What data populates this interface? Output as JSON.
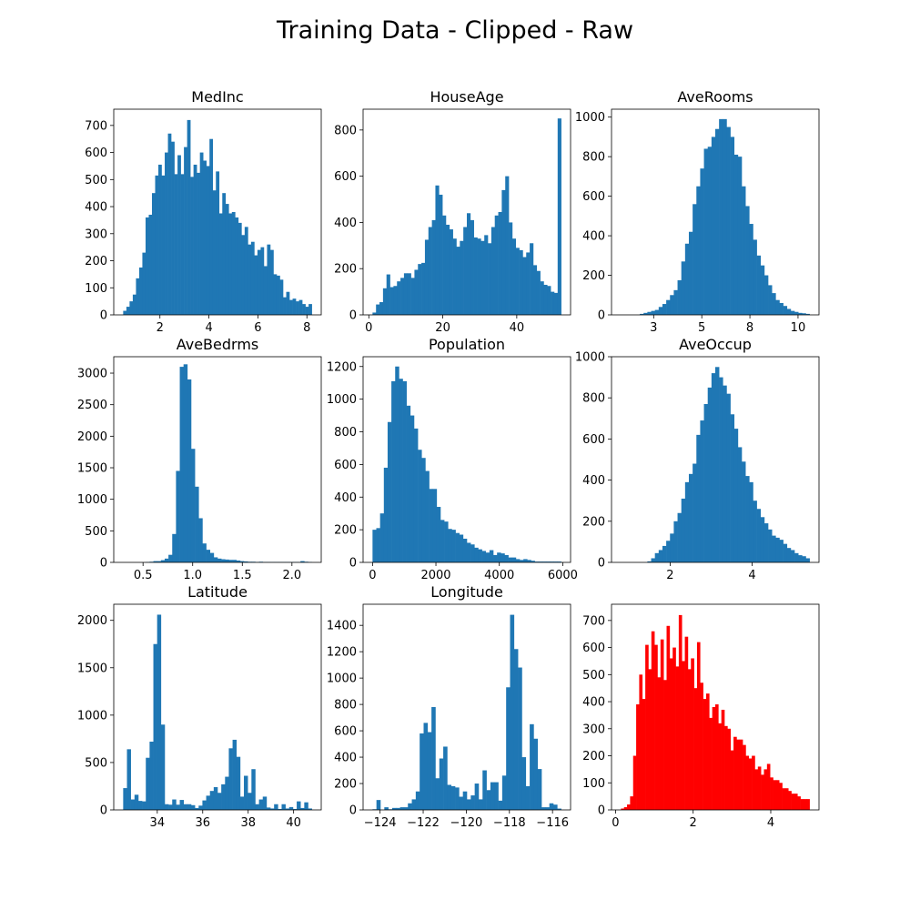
{
  "figure": {
    "title": "Training Data - Clipped - Raw"
  },
  "chart_data": [
    {
      "type": "bar",
      "title": "MedInc",
      "color": "#1f77b4",
      "bin_start": 0.5,
      "bin_end": 8.2,
      "values": [
        15,
        30,
        50,
        75,
        135,
        175,
        230,
        360,
        370,
        450,
        515,
        555,
        515,
        600,
        670,
        640,
        520,
        590,
        520,
        620,
        720,
        510,
        555,
        525,
        600,
        570,
        550,
        650,
        460,
        530,
        375,
        450,
        410,
        375,
        380,
        360,
        340,
        295,
        325,
        260,
        270,
        220,
        240,
        250,
        180,
        260,
        240,
        150,
        145,
        130,
        65,
        85,
        55,
        60,
        50,
        55,
        40,
        30,
        40
      ],
      "ylim": [
        0,
        760
      ],
      "xticks": [
        2,
        4,
        6,
        8
      ],
      "yticks": [
        0,
        100,
        200,
        300,
        400,
        500,
        600,
        700
      ]
    },
    {
      "type": "bar",
      "title": "HouseAge",
      "color": "#1f77b4",
      "bin_start": 1,
      "bin_end": 52,
      "values": [
        10,
        45,
        55,
        115,
        175,
        120,
        125,
        145,
        160,
        180,
        180,
        160,
        195,
        220,
        225,
        325,
        380,
        410,
        560,
        520,
        430,
        390,
        370,
        330,
        295,
        320,
        380,
        440,
        410,
        335,
        330,
        320,
        345,
        310,
        380,
        430,
        445,
        540,
        600,
        400,
        330,
        290,
        280,
        250,
        270,
        310,
        215,
        190,
        145,
        130,
        125,
        100,
        95,
        850
      ],
      "ylim": [
        0,
        890
      ],
      "xticks": [
        0,
        20,
        40
      ],
      "yticks": [
        0,
        200,
        400,
        600,
        800
      ]
    },
    {
      "type": "bar",
      "title": "AveRooms",
      "color": "#1f77b4",
      "bin_start": 0.8,
      "bin_end": 10.6,
      "values": [
        0,
        0,
        0,
        0,
        0,
        5,
        10,
        15,
        20,
        25,
        40,
        55,
        75,
        100,
        125,
        175,
        270,
        360,
        420,
        560,
        650,
        740,
        840,
        850,
        900,
        940,
        990,
        990,
        950,
        900,
        810,
        800,
        650,
        550,
        460,
        380,
        300,
        250,
        200,
        150,
        110,
        75,
        60,
        45,
        30,
        20,
        15,
        10,
        8,
        5
      ],
      "ylim": [
        0,
        1040
      ],
      "xticks": [
        2.5,
        5.0,
        7.5,
        10.0
      ],
      "yticks": [
        0,
        200,
        400,
        600,
        800,
        1000
      ]
    },
    {
      "type": "bar",
      "title": "AveBedrms",
      "color": "#1f77b4",
      "bin_start": 0.3,
      "bin_end": 2.2,
      "values": [
        0,
        0,
        0,
        0,
        0,
        0,
        5,
        10,
        20,
        20,
        35,
        60,
        120,
        450,
        1450,
        3100,
        3140,
        2900,
        1800,
        1200,
        700,
        300,
        200,
        150,
        80,
        60,
        50,
        45,
        40,
        40,
        30,
        20,
        15,
        10,
        10,
        5,
        10,
        5,
        5,
        5,
        5,
        5,
        5,
        5,
        5,
        5,
        5,
        20,
        10,
        5
      ],
      "ylim": [
        0,
        3260
      ],
      "xticks": [
        0.5,
        1.0,
        1.5,
        2.0
      ],
      "yticks": [
        0,
        500,
        1000,
        1500,
        2000,
        2500,
        3000
      ]
    },
    {
      "type": "bar",
      "title": "Population",
      "color": "#1f77b4",
      "bin_start": 0,
      "bin_end": 5950,
      "values": [
        200,
        210,
        300,
        580,
        860,
        1110,
        1200,
        1125,
        1110,
        960,
        900,
        820,
        690,
        640,
        560,
        450,
        450,
        340,
        260,
        250,
        205,
        200,
        180,
        170,
        145,
        120,
        110,
        90,
        80,
        70,
        60,
        75,
        45,
        60,
        55,
        45,
        30,
        30,
        20,
        15,
        20,
        15,
        10,
        5,
        5,
        5,
        5,
        5,
        5,
        5
      ],
      "ylim": [
        0,
        1260
      ],
      "xticks": [
        0,
        2000,
        4000,
        6000
      ],
      "yticks": [
        0,
        200,
        400,
        600,
        800,
        1000,
        1200
      ]
    },
    {
      "type": "bar",
      "title": "AveOccup",
      "color": "#1f77b4",
      "bin_start": 0.8,
      "bin_end": 5.4,
      "values": [
        0,
        0,
        0,
        0,
        0,
        0,
        0,
        5,
        20,
        45,
        60,
        80,
        105,
        140,
        200,
        240,
        310,
        390,
        430,
        480,
        620,
        690,
        770,
        850,
        920,
        950,
        900,
        860,
        820,
        720,
        650,
        560,
        490,
        420,
        390,
        300,
        260,
        220,
        190,
        160,
        130,
        120,
        110,
        90,
        70,
        60,
        45,
        35,
        30,
        20
      ],
      "ylim": [
        0,
        1000
      ],
      "xticks": [
        2,
        4
      ],
      "yticks": [
        0,
        200,
        400,
        600,
        800,
        1000
      ]
    },
    {
      "type": "bar",
      "title": "Latitude",
      "color": "#1f77b4",
      "bin_start": 32.5,
      "bin_end": 40.8,
      "values": [
        230,
        640,
        110,
        160,
        95,
        90,
        550,
        720,
        1750,
        2060,
        900,
        60,
        55,
        110,
        55,
        105,
        60,
        60,
        50,
        20,
        45,
        100,
        150,
        200,
        240,
        180,
        270,
        350,
        650,
        740,
        560,
        140,
        360,
        180,
        430,
        60,
        110,
        140,
        25,
        15,
        60,
        10,
        60,
        15,
        30,
        10,
        90,
        20,
        80,
        15
      ],
      "ylim": [
        0,
        2170
      ],
      "xticks": [
        34,
        36,
        38,
        40
      ],
      "yticks": [
        0,
        500,
        1000,
        1500,
        2000
      ]
    },
    {
      "type": "bar",
      "title": "Longitude",
      "color": "#1f77b4",
      "bin_start": -124.35,
      "bin_end": -115.6,
      "values": [
        5,
        75,
        0,
        20,
        5,
        15,
        15,
        20,
        20,
        50,
        80,
        140,
        580,
        660,
        590,
        780,
        240,
        390,
        480,
        190,
        180,
        170,
        100,
        140,
        80,
        110,
        200,
        80,
        300,
        150,
        210,
        210,
        70,
        260,
        930,
        1480,
        1220,
        1080,
        400,
        180,
        650,
        540,
        310,
        20,
        20,
        50,
        40,
        10
      ],
      "ylim": [
        0,
        1560
      ],
      "xticks": [
        -124,
        -122,
        -120,
        -118,
        -116
      ],
      "yticks": [
        0,
        200,
        400,
        600,
        800,
        1000,
        1200,
        1400
      ]
    },
    {
      "type": "bar",
      "title": "",
      "color": "#ff0000",
      "bin_start": 0.14,
      "bin_end": 5.0,
      "values": [
        5,
        10,
        20,
        50,
        200,
        390,
        500,
        410,
        610,
        520,
        660,
        610,
        490,
        630,
        480,
        680,
        560,
        600,
        530,
        720,
        550,
        640,
        520,
        560,
        450,
        620,
        470,
        410,
        430,
        340,
        380,
        390,
        320,
        370,
        310,
        300,
        220,
        270,
        260,
        260,
        240,
        200,
        190,
        200,
        150,
        160,
        130,
        150,
        170,
        120,
        110,
        110,
        100,
        80,
        80,
        70,
        60,
        60,
        50,
        40,
        40,
        40
      ],
      "ylim": [
        0,
        760
      ],
      "xticks": [
        0,
        2,
        4
      ],
      "yticks": [
        0,
        100,
        200,
        300,
        400,
        500,
        600,
        700
      ]
    }
  ]
}
